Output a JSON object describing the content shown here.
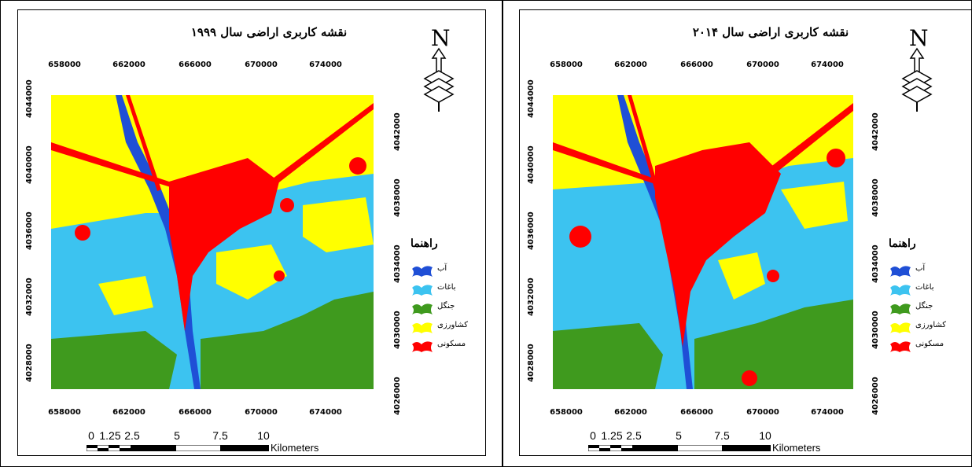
{
  "panels": [
    {
      "title": "نقشه کاربری اراضی سال ۱۹۹۹",
      "x_ticks": [
        "658000",
        "662000",
        "666000",
        "670000",
        "674000"
      ],
      "y_ticks": [
        "4044000",
        "4040000",
        "4036000",
        "4032000",
        "4028000"
      ],
      "y_ticks_right": [
        "4042000",
        "4038000",
        "4034000",
        "4030000",
        "4026000"
      ],
      "legend_title": "راهنما",
      "legend": [
        {
          "label": "آب",
          "color": "#1f4fd6"
        },
        {
          "label": "باغات",
          "color": "#3cc3f0"
        },
        {
          "label": "جنگل",
          "color": "#3f9a1e"
        },
        {
          "label": "کشاورزی",
          "color": "#ffff00"
        },
        {
          "label": "مسکونی",
          "color": "#ff0000"
        }
      ],
      "scale": {
        "labels": [
          "0",
          "1.25",
          "2.5",
          "5",
          "7.5",
          "10"
        ],
        "unit": "Kilometers"
      }
    },
    {
      "title": "نقشه کاربری اراضی سال ۲۰۱۴",
      "x_ticks": [
        "658000",
        "662000",
        "666000",
        "670000",
        "674000"
      ],
      "y_ticks": [
        "4044000",
        "4040000",
        "4036000",
        "4032000",
        "4028000"
      ],
      "y_ticks_right": [
        "4042000",
        "4038000",
        "4034000",
        "4030000",
        "4026000"
      ],
      "legend_title": "راهنما",
      "legend": [
        {
          "label": "آب",
          "color": "#1f4fd6"
        },
        {
          "label": "باغات",
          "color": "#3cc3f0"
        },
        {
          "label": "جنگل",
          "color": "#3f9a1e"
        },
        {
          "label": "کشاورزی",
          "color": "#ffff00"
        },
        {
          "label": "مسکونی",
          "color": "#ff0000"
        }
      ],
      "scale": {
        "labels": [
          "0",
          "1.25",
          "2.5",
          "5",
          "7.5",
          "10"
        ],
        "unit": "Kilometers"
      }
    }
  ],
  "north_arrow_label": "N"
}
